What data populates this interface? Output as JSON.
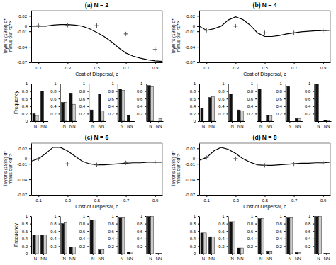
{
  "chart_data": [
    {
      "type": "line",
      "title": "(a) N = 2",
      "xlabel": "Cost of Dispersal, c",
      "ylabel": "Taylor's (1988) d*\nminus our <d*>",
      "x": [
        0.05,
        0.1,
        0.15,
        0.2,
        0.25,
        0.3,
        0.35,
        0.4,
        0.45,
        0.5,
        0.55,
        0.6,
        0.65,
        0.7,
        0.75,
        0.8,
        0.85,
        0.9,
        0.95
      ],
      "series": [
        {
          "type": "line",
          "color": "#000000",
          "values": [
            0.0,
            0.0,
            0.0,
            0.002,
            0.003,
            0.003,
            0.002,
            0.0,
            -0.005,
            -0.012,
            -0.02,
            -0.03,
            -0.042,
            -0.052,
            -0.058,
            -0.062,
            -0.065,
            -0.067,
            -0.068
          ]
        },
        {
          "type": "scatter",
          "color": "#555555",
          "marker": "+",
          "x": [
            0.1,
            0.3,
            0.5,
            0.7,
            0.9
          ],
          "values": [
            0.001,
            0.002,
            0.001,
            -0.015,
            -0.045
          ]
        }
      ],
      "xlim": [
        0.05,
        0.95
      ],
      "ylim": [
        -0.07,
        0.03
      ],
      "xticks": [
        0.1,
        0.3,
        0.5,
        0.7,
        0.9
      ],
      "yticks": [
        0.02,
        0,
        -0.01,
        -0.04,
        -0.07
      ]
    },
    {
      "type": "bar",
      "categories": [
        "N",
        "NN"
      ],
      "series": [
        {
          "color": "#111111",
          "values": [
            0.2,
            0.8
          ]
        },
        {
          "color": "#cccccc",
          "values": [
            0.15,
            0.0
          ]
        }
      ],
      "ylim": [
        0,
        1
      ],
      "yticks": [
        0,
        0.2,
        0.4,
        0.6,
        0.8,
        1
      ],
      "ylabel": "Frequency"
    },
    {
      "type": "bar",
      "categories": [
        "N",
        "NN"
      ],
      "series": [
        {
          "color": "#111111",
          "values": [
            0.5,
            0.75
          ]
        },
        {
          "color": "#cccccc",
          "values": [
            0.5,
            0.45
          ]
        }
      ],
      "ylim": [
        0,
        1
      ],
      "yticks": [
        0.2,
        0.4,
        0.6,
        0.8,
        1
      ]
    },
    {
      "type": "bar",
      "categories": [
        "N",
        "NN"
      ],
      "series": [
        {
          "color": "#111111",
          "values": [
            0.3,
            0.72
          ]
        },
        {
          "color": "#cccccc",
          "values": [
            0.0,
            0.27
          ]
        }
      ],
      "ylim": [
        0,
        1
      ],
      "yticks": [
        0.2,
        0.4,
        0.6,
        0.8,
        1
      ]
    },
    {
      "type": "bar",
      "categories": [
        "N",
        "NN"
      ],
      "series": [
        {
          "color": "#111111",
          "values": [
            0.85,
            0.15
          ]
        },
        {
          "color": "#cccccc",
          "values": [
            0.82,
            0.0
          ]
        }
      ],
      "ylim": [
        0,
        1
      ],
      "yticks": [
        0.2,
        0.4,
        0.6,
        0.8,
        1
      ]
    },
    {
      "type": "bar",
      "categories": [
        "N",
        "NN"
      ],
      "series": [
        {
          "color": "#111111",
          "values": [
            0.95,
            0.0
          ]
        },
        {
          "color": "#cccccc",
          "values": [
            0.92,
            0.07
          ]
        }
      ],
      "ylim": [
        0,
        1
      ],
      "yticks": [
        0.2,
        0.4,
        0.6,
        0.8,
        1
      ]
    },
    {
      "type": "line",
      "title": "(b) N = 4",
      "xlabel": "Cost of Dispersal, c",
      "ylabel": "Taylor's (1988) d*\nminus our <d*>",
      "x": [
        0.05,
        0.1,
        0.15,
        0.2,
        0.25,
        0.3,
        0.35,
        0.4,
        0.45,
        0.5,
        0.55,
        0.6,
        0.65,
        0.7,
        0.75,
        0.8,
        0.85,
        0.9,
        0.95
      ],
      "series": [
        {
          "type": "line",
          "color": "#000000",
          "values": [
            0.0,
            -0.008,
            -0.005,
            0.0,
            0.012,
            0.018,
            0.013,
            0.002,
            -0.013,
            -0.02,
            -0.02,
            -0.018,
            -0.015,
            -0.013,
            -0.011,
            -0.01,
            -0.009,
            -0.009,
            -0.008
          ]
        },
        {
          "type": "scatter",
          "color": "#555555",
          "marker": "+",
          "x": [
            0.1,
            0.3,
            0.5,
            0.7,
            0.9
          ],
          "values": [
            -0.008,
            0.0,
            -0.013,
            -0.013,
            -0.009
          ]
        }
      ],
      "xlim": [
        0.05,
        0.95
      ],
      "ylim": [
        -0.07,
        0.03
      ],
      "xticks": [
        0.1,
        0.3,
        0.5,
        0.7,
        0.9
      ],
      "yticks": [
        0.02,
        0,
        -0.01,
        -0.04,
        -0.07
      ]
    },
    {
      "type": "bar",
      "categories": [
        "N",
        "NN"
      ],
      "series": [
        {
          "color": "#111111",
          "values": [
            0.35,
            0.63
          ]
        },
        {
          "color": "#cccccc",
          "values": [
            0.0,
            0.65
          ]
        }
      ],
      "ylim": [
        0,
        1
      ],
      "yticks": [
        0,
        0.2,
        0.4,
        0.6,
        0.8,
        1
      ]
    },
    {
      "type": "bar",
      "categories": [
        "N",
        "NN"
      ],
      "series": [
        {
          "color": "#111111",
          "values": [
            0.72,
            0.3
          ]
        },
        {
          "color": "#cccccc",
          "values": [
            0.0,
            0.27
          ]
        }
      ],
      "ylim": [
        0,
        1
      ],
      "yticks": [
        0.2,
        0.4,
        0.6,
        0.8,
        1
      ]
    },
    {
      "type": "bar",
      "categories": [
        "N",
        "NN"
      ],
      "series": [
        {
          "color": "#111111",
          "values": [
            0.85,
            0.15
          ]
        },
        {
          "color": "#cccccc",
          "values": [
            0.0,
            0.15
          ]
        }
      ],
      "ylim": [
        0,
        1
      ],
      "yticks": [
        0.2,
        0.4,
        0.6,
        0.8,
        1
      ]
    },
    {
      "type": "bar",
      "categories": [
        "N",
        "NN"
      ],
      "series": [
        {
          "color": "#111111",
          "values": [
            0.92,
            0.07
          ]
        },
        {
          "color": "#cccccc",
          "values": [
            0.0,
            0.07
          ]
        }
      ],
      "ylim": [
        0,
        1
      ],
      "yticks": [
        0.2,
        0.4,
        0.6,
        0.8,
        1
      ]
    },
    {
      "type": "bar",
      "categories": [
        "N",
        "NN"
      ],
      "series": [
        {
          "color": "#111111",
          "values": [
            0.98,
            0.02
          ]
        },
        {
          "color": "#cccccc",
          "values": [
            0.0,
            0.03
          ]
        }
      ],
      "ylim": [
        0,
        1
      ],
      "yticks": [
        0.2,
        0.4,
        0.6,
        0.8,
        1
      ]
    },
    {
      "type": "line",
      "title": "(c) N = 6",
      "xlabel": "Cost of Dispersal, c",
      "ylabel": "Taylor's (1988) d*\nminus our <d*>",
      "x": [
        0.05,
        0.1,
        0.15,
        0.2,
        0.25,
        0.3,
        0.35,
        0.4,
        0.45,
        0.5,
        0.55,
        0.6,
        0.65,
        0.7,
        0.75,
        0.8,
        0.85,
        0.9,
        0.95
      ],
      "series": [
        {
          "type": "line",
          "color": "#000000",
          "values": [
            -0.005,
            0.0,
            0.01,
            0.022,
            0.022,
            0.015,
            0.005,
            -0.005,
            -0.01,
            -0.012,
            -0.012,
            -0.011,
            -0.01,
            -0.009,
            -0.008,
            -0.008,
            -0.007,
            -0.007,
            -0.007
          ]
        },
        {
          "type": "scatter",
          "color": "#555555",
          "marker": "+",
          "x": [
            0.1,
            0.3,
            0.5,
            0.7,
            0.9
          ],
          "values": [
            0.0,
            -0.01,
            -0.012,
            -0.008,
            -0.007
          ]
        }
      ],
      "xlim": [
        0.05,
        0.95
      ],
      "ylim": [
        -0.07,
        0.03
      ],
      "xticks": [
        0.1,
        0.3,
        0.5,
        0.7,
        0.9
      ],
      "yticks": [
        0.02,
        0,
        -0.01,
        -0.04,
        -0.07
      ]
    },
    {
      "type": "bar",
      "categories": [
        "N",
        "NN"
      ],
      "series": [
        {
          "color": "#111111",
          "values": [
            0.5,
            0.5
          ]
        },
        {
          "color": "#cccccc",
          "values": [
            0.5,
            0.5
          ]
        }
      ],
      "ylim": [
        0,
        1
      ],
      "yticks": [
        0,
        0.2,
        0.4,
        0.6,
        0.8,
        1
      ],
      "ylabel": "Frequency"
    },
    {
      "type": "bar",
      "categories": [
        "N",
        "NN"
      ],
      "series": [
        {
          "color": "#111111",
          "values": [
            0.8,
            0.18
          ]
        },
        {
          "color": "#cccccc",
          "values": [
            0.82,
            0.18
          ]
        }
      ],
      "ylim": [
        0,
        1
      ],
      "yticks": [
        0.2,
        0.4,
        0.6,
        0.8,
        1
      ]
    },
    {
      "type": "bar",
      "categories": [
        "N",
        "NN"
      ],
      "series": [
        {
          "color": "#111111",
          "values": [
            0.9,
            0.1
          ]
        },
        {
          "color": "#cccccc",
          "values": [
            0.9,
            0.1
          ]
        }
      ],
      "ylim": [
        0,
        1
      ],
      "yticks": [
        0.2,
        0.4,
        0.6,
        0.8,
        1
      ]
    },
    {
      "type": "bar",
      "categories": [
        "N",
        "NN"
      ],
      "series": [
        {
          "color": "#111111",
          "values": [
            0.97,
            0.04
          ]
        },
        {
          "color": "#cccccc",
          "values": [
            0.97,
            0.04
          ]
        }
      ],
      "ylim": [
        0,
        1
      ],
      "yticks": [
        0.2,
        0.4,
        0.6,
        0.8,
        1
      ]
    },
    {
      "type": "bar",
      "categories": [
        "N",
        "NN"
      ],
      "series": [
        {
          "color": "#111111",
          "values": [
            0.99,
            0.01
          ]
        },
        {
          "color": "#cccccc",
          "values": [
            0.99,
            0.01
          ]
        }
      ],
      "ylim": [
        0,
        1
      ],
      "yticks": [
        0.2,
        0.4,
        0.6,
        0.8,
        1
      ]
    },
    {
      "type": "line",
      "title": "(d) N = 8",
      "xlabel": "Cost of Dispersal, c",
      "ylabel": "Taylor's (1988) d*\nminus our <d*>",
      "x": [
        0.05,
        0.1,
        0.15,
        0.2,
        0.25,
        0.3,
        0.35,
        0.4,
        0.45,
        0.5,
        0.55,
        0.6,
        0.65,
        0.7,
        0.75,
        0.8,
        0.85,
        0.9,
        0.95
      ],
      "series": [
        {
          "type": "line",
          "color": "#000000",
          "values": [
            -0.003,
            0.002,
            0.015,
            0.022,
            0.018,
            0.01,
            0.0,
            -0.007,
            -0.012,
            -0.013,
            -0.013,
            -0.012,
            -0.011,
            -0.01,
            -0.009,
            -0.009,
            -0.008,
            -0.008,
            -0.007
          ]
        },
        {
          "type": "scatter",
          "color": "#555555",
          "marker": "+",
          "x": [
            0.1,
            0.3,
            0.5,
            0.7,
            0.9
          ],
          "values": [
            0.002,
            0.0,
            -0.013,
            -0.01,
            -0.008
          ]
        }
      ],
      "xlim": [
        0.05,
        0.95
      ],
      "ylim": [
        -0.07,
        0.03
      ],
      "xticks": [
        0.1,
        0.3,
        0.5,
        0.7,
        0.9
      ],
      "yticks": [
        0.02,
        0,
        -0.01,
        -0.04,
        -0.07
      ]
    },
    {
      "type": "bar",
      "categories": [
        "N",
        "NN"
      ],
      "series": [
        {
          "color": "#111111",
          "values": [
            0.55,
            0.45
          ]
        },
        {
          "color": "#cccccc",
          "values": [
            0.55,
            0.45
          ]
        }
      ],
      "ylim": [
        0,
        1
      ],
      "yticks": [
        0,
        0.2,
        0.4,
        0.6,
        0.8,
        1
      ]
    },
    {
      "type": "bar",
      "categories": [
        "N",
        "NN"
      ],
      "series": [
        {
          "color": "#111111",
          "values": [
            0.85,
            0.15
          ]
        },
        {
          "color": "#cccccc",
          "values": [
            0.85,
            0.15
          ]
        }
      ],
      "ylim": [
        0,
        1
      ],
      "yticks": [
        0.2,
        0.4,
        0.6,
        0.8,
        1
      ]
    },
    {
      "type": "bar",
      "categories": [
        "N",
        "NN"
      ],
      "series": [
        {
          "color": "#111111",
          "values": [
            0.93,
            0.07
          ]
        },
        {
          "color": "#cccccc",
          "values": [
            0.93,
            0.07
          ]
        }
      ],
      "ylim": [
        0,
        1
      ],
      "yticks": [
        0.2,
        0.4,
        0.6,
        0.8,
        1
      ]
    },
    {
      "type": "bar",
      "categories": [
        "N",
        "NN"
      ],
      "series": [
        {
          "color": "#111111",
          "values": [
            0.97,
            0.03
          ]
        },
        {
          "color": "#cccccc",
          "values": [
            0.97,
            0.03
          ]
        }
      ],
      "ylim": [
        0,
        1
      ],
      "yticks": [
        0.2,
        0.4,
        0.6,
        0.8,
        1
      ]
    },
    {
      "type": "bar",
      "categories": [
        "N",
        "NN"
      ],
      "series": [
        {
          "color": "#111111",
          "values": [
            0.99,
            0.01
          ]
        },
        {
          "color": "#cccccc",
          "values": [
            0.99,
            0.01
          ]
        }
      ],
      "ylim": [
        0,
        1
      ],
      "yticks": [
        0.2,
        0.4,
        0.6,
        0.8,
        1
      ]
    }
  ]
}
